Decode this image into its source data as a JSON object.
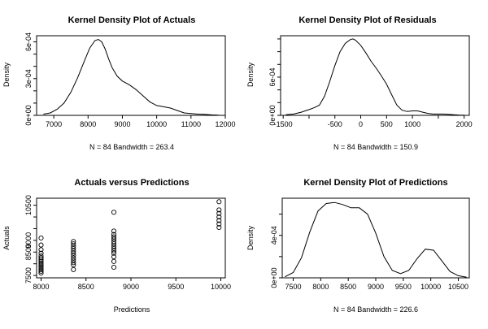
{
  "chart_data": [
    {
      "type": "line",
      "title": "Kernel Density Plot of Actuals",
      "xlabel": "N = 84   Bandwidth = 263.4",
      "ylabel": "Density",
      "xlim": [
        6500,
        12000
      ],
      "ylim": [
        0,
        0.00065
      ],
      "xticks": [
        7000,
        8000,
        9000,
        10000,
        11000,
        12000
      ],
      "yticks": [
        0,
        0.0001,
        0.0002,
        0.0003,
        0.0004,
        0.0005,
        0.0006
      ],
      "ytick_labels": [
        "0e+00",
        "",
        "",
        "3e-04",
        "",
        "",
        "6e-04"
      ],
      "series": [
        {
          "x": [
            6700,
            6900,
            7100,
            7300,
            7500,
            7700,
            7900,
            8050,
            8200,
            8300,
            8400,
            8500,
            8600,
            8700,
            8850,
            9000,
            9200,
            9400,
            9600,
            9800,
            10000,
            10200,
            10400,
            10600,
            10800,
            11000,
            11200,
            11400,
            11600,
            11800
          ],
          "y": [
            1e-05,
            2e-05,
            5e-05,
            0.0001,
            0.00019,
            0.00031,
            0.00045,
            0.00055,
            0.00061,
            0.00062,
            0.0006,
            0.00054,
            0.00046,
            0.00039,
            0.00032,
            0.00028,
            0.00025,
            0.00021,
            0.00016,
            0.00011,
            8e-05,
            7e-05,
            6e-05,
            4e-05,
            2e-05,
            1.5e-05,
            1e-05,
            8e-06,
            4e-06,
            2e-06
          ]
        }
      ]
    },
    {
      "type": "line",
      "title": "Kernel Density Plot of Residuals",
      "xlabel": "N = 84   Bandwidth = 150.9",
      "ylabel": "Density",
      "xlim": [
        -1550,
        2100
      ],
      "ylim": [
        0,
        0.00125
      ],
      "xticks": [
        -1500,
        -1000,
        -500,
        0,
        500,
        1000,
        1500,
        2000
      ],
      "xtick_labels": [
        "-1500",
        "",
        "-500",
        "0",
        "500",
        "1000",
        "",
        "2000"
      ],
      "yticks": [
        0,
        0.0002,
        0.0004,
        0.0006,
        0.0008,
        0.001,
        0.0012
      ],
      "ytick_labels": [
        "0e+00",
        "",
        "",
        "6e-04",
        "",
        "",
        ""
      ],
      "series": [
        {
          "x": [
            -1450,
            -1300,
            -1150,
            -1000,
            -900,
            -800,
            -700,
            -600,
            -500,
            -400,
            -300,
            -200,
            -150,
            -100,
            0,
            100,
            200,
            300,
            400,
            500,
            600,
            700,
            800,
            900,
            1000,
            1100,
            1200,
            1300,
            1400,
            1500,
            1600,
            1700,
            1800,
            1900,
            2000
          ],
          "y": [
            1e-05,
            2e-05,
            5e-05,
            9e-05,
            0.00012,
            0.00016,
            0.0003,
            0.00053,
            0.00078,
            0.001,
            0.00113,
            0.00119,
            0.0012,
            0.00118,
            0.0011,
            0.00098,
            0.00085,
            0.00074,
            0.00062,
            0.00049,
            0.00032,
            0.00016,
            8e-05,
            6e-05,
            7e-05,
            7e-05,
            5e-05,
            3e-05,
            2e-05,
            2e-05,
            2e-05,
            1.5e-05,
            1e-05,
            5e-06,
            2e-06
          ]
        }
      ]
    },
    {
      "type": "scatter",
      "title": "Actuals versus Predictions",
      "xlabel": "Predictions",
      "ylabel": "Actuals",
      "xlim": [
        7950,
        10050
      ],
      "ylim": [
        7400,
        10800
      ],
      "xticks": [
        8000,
        8500,
        9000,
        9500,
        10000
      ],
      "yticks": [
        7500,
        8000,
        8500,
        9000,
        9500,
        10000,
        10500
      ],
      "ytick_labels": [
        "7500",
        "",
        "8500",
        "9000",
        "",
        "",
        "10500"
      ],
      "series": [
        {
          "points": [
            [
              8000,
              7600
            ],
            [
              8000,
              7680
            ],
            [
              8000,
              7750
            ],
            [
              8000,
              7820
            ],
            [
              8000,
              7880
            ],
            [
              8000,
              7950
            ],
            [
              8000,
              8020
            ],
            [
              8000,
              8100
            ],
            [
              8000,
              8170
            ],
            [
              8000,
              8250
            ],
            [
              8000,
              8330
            ],
            [
              8000,
              8450
            ],
            [
              8000,
              8600
            ],
            [
              8000,
              8800
            ],
            [
              8000,
              9100
            ],
            [
              8360,
              7750
            ],
            [
              8360,
              7950
            ],
            [
              8360,
              8050
            ],
            [
              8360,
              8150
            ],
            [
              8360,
              8250
            ],
            [
              8360,
              8350
            ],
            [
              8360,
              8450
            ],
            [
              8360,
              8550
            ],
            [
              8360,
              8650
            ],
            [
              8360,
              8750
            ],
            [
              8360,
              8850
            ],
            [
              8360,
              8950
            ],
            [
              8810,
              7850
            ],
            [
              8810,
              8100
            ],
            [
              8810,
              8300
            ],
            [
              8810,
              8450
            ],
            [
              8810,
              8550
            ],
            [
              8810,
              8650
            ],
            [
              8810,
              8750
            ],
            [
              8810,
              8850
            ],
            [
              8810,
              8950
            ],
            [
              8810,
              9050
            ],
            [
              8810,
              9150
            ],
            [
              8810,
              9250
            ],
            [
              8810,
              9400
            ],
            [
              8810,
              10200
            ],
            [
              9980,
              9550
            ],
            [
              9980,
              9700
            ],
            [
              9980,
              9850
            ],
            [
              9980,
              10000
            ],
            [
              9980,
              10150
            ],
            [
              9980,
              10300
            ],
            [
              9980,
              10650
            ]
          ]
        }
      ]
    },
    {
      "type": "line",
      "title": "Kernel Density Plot of Predictions",
      "xlabel": "N = 84   Bandwidth = 226.6",
      "ylabel": "Density",
      "xlim": [
        7300,
        10700
      ],
      "ylim": [
        0,
        0.00075
      ],
      "xticks": [
        7500,
        8000,
        8500,
        9000,
        9500,
        10000,
        10500
      ],
      "yticks": [
        0,
        0.0002,
        0.0004,
        0.0006
      ],
      "ytick_labels": [
        "0e+00",
        "",
        "4e-04",
        ""
      ],
      "series": [
        {
          "x": [
            7350,
            7500,
            7650,
            7800,
            7950,
            8100,
            8250,
            8400,
            8550,
            8700,
            8850,
            9000,
            9150,
            9300,
            9450,
            9600,
            9750,
            9900,
            10050,
            10200,
            10350,
            10500,
            10650
          ],
          "y": [
            1e-05,
            5e-05,
            0.00019,
            0.00043,
            0.00063,
            0.0007,
            0.00071,
            0.00069,
            0.00066,
            0.00066,
            0.0006,
            0.00042,
            0.0002,
            7e-05,
            4e-05,
            7e-05,
            0.00018,
            0.00027,
            0.00026,
            0.00016,
            6e-05,
            2e-05,
            5e-06
          ]
        }
      ]
    }
  ]
}
